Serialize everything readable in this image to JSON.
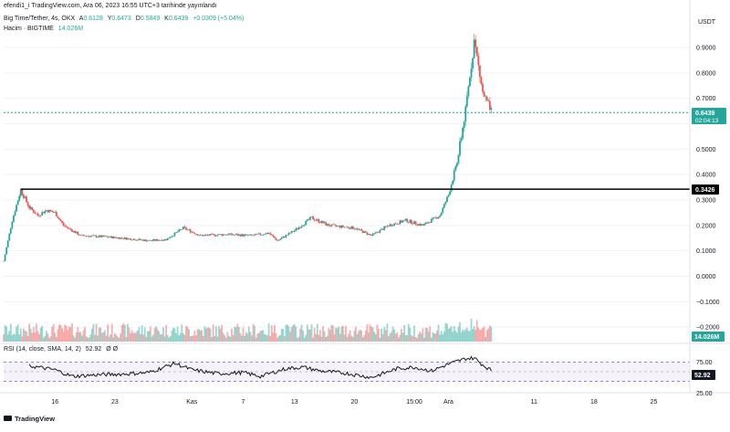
{
  "attribution": "efendi1_i TradingView.com, Ara 06, 2023 16:55 UTC+3 tarihinde yayınlandı",
  "legend": {
    "symbol": "Big Time/Tether, 4s, OKX",
    "open_label": "A",
    "open": "0.6128",
    "high_label": "Y",
    "high": "0.6473",
    "low_label": "D",
    "low": "0.5849",
    "close_label": "K",
    "close": "0.6439",
    "change": "+0.0309 (+5.04%)",
    "volume_label": "Hacim · BIGTIME",
    "volume": "14.026M"
  },
  "currency": "USDT",
  "price_axis_ticks": [
    "0.9000",
    "0.8000",
    "0.7000",
    "0.5000",
    "0.4000",
    "0.3000",
    "0.2000",
    "0.1000",
    "0.0000",
    "−0.1000",
    "−0.2000"
  ],
  "price_labels": {
    "last_price": "0.6439",
    "countdown": "02:04:13",
    "horizontal_line": "0.3426",
    "volume_badge": "14.026M"
  },
  "rsi": {
    "legend_title": "RSI (14, close, SMA, 14, 2)",
    "legend_value": "52.92",
    "legend_extra": "Ø Ø",
    "ticks": [
      "75.00",
      "25.00"
    ],
    "badge": "52.92"
  },
  "time_axis": [
    "16",
    "23",
    "Kas",
    "7",
    "13",
    "20",
    "15:00",
    "Ara",
    "11",
    "18",
    "25"
  ],
  "footer_logo": "TradingView",
  "colors": {
    "up": "#26a69a",
    "down": "#ef5350",
    "last_price_line": "#26a69a",
    "horizontal_line": "#000000",
    "rsi_line": "#131722",
    "rsi_band": "#7e57c2",
    "grid": "#f0f3fa"
  },
  "chart_data": [
    {
      "type": "candlestick",
      "title": "Big Time/Tether, 4s, OKX",
      "ylabel": "USDT",
      "ylim": [
        -0.22,
        1.0
      ],
      "horizontal_line": 0.3426,
      "x_start": "2023-10-10",
      "x_end": "2023-12-29",
      "close_path": [
        [
          "2023-10-10",
          0.06
        ],
        [
          "2023-10-11",
          0.22
        ],
        [
          "2023-10-12",
          0.34
        ],
        [
          "2023-10-13",
          0.27
        ],
        [
          "2023-10-14",
          0.24
        ],
        [
          "2023-10-15",
          0.26
        ],
        [
          "2023-10-16",
          0.25
        ],
        [
          "2023-10-17",
          0.2
        ],
        [
          "2023-10-19",
          0.16
        ],
        [
          "2023-10-22",
          0.155
        ],
        [
          "2023-10-24",
          0.15
        ],
        [
          "2023-10-27",
          0.14
        ],
        [
          "2023-10-29",
          0.145
        ],
        [
          "2023-10-31",
          0.19
        ],
        [
          "2023-11-02",
          0.16
        ],
        [
          "2023-11-05",
          0.165
        ],
        [
          "2023-11-08",
          0.16
        ],
        [
          "2023-11-10",
          0.17
        ],
        [
          "2023-11-11",
          0.14
        ],
        [
          "2023-11-13",
          0.18
        ],
        [
          "2023-11-15",
          0.23
        ],
        [
          "2023-11-17",
          0.2
        ],
        [
          "2023-11-20",
          0.19
        ],
        [
          "2023-11-22",
          0.16
        ],
        [
          "2023-11-24",
          0.2
        ],
        [
          "2023-11-26",
          0.22
        ],
        [
          "2023-11-28",
          0.2
        ],
        [
          "2023-11-30",
          0.24
        ],
        [
          "2023-12-01",
          0.32
        ],
        [
          "2023-12-02",
          0.45
        ],
        [
          "2023-12-03",
          0.65
        ],
        [
          "2023-12-04",
          0.93
        ],
        [
          "2023-12-05",
          0.72
        ],
        [
          "2023-12-06",
          0.6439
        ]
      ]
    },
    {
      "type": "bar",
      "title": "Hacim · BIGTIME",
      "last_value": "14.026M"
    },
    {
      "type": "line",
      "title": "RSI (14, close, SMA, 14, 2)",
      "ylim": [
        0,
        100
      ],
      "bands": [
        25,
        75
      ],
      "values": [
        [
          "2023-10-13",
          65
        ],
        [
          "2023-10-14",
          62
        ],
        [
          "2023-10-16",
          55
        ],
        [
          "2023-10-18",
          38
        ],
        [
          "2023-10-21",
          42
        ],
        [
          "2023-10-24",
          44
        ],
        [
          "2023-10-27",
          48
        ],
        [
          "2023-10-30",
          72
        ],
        [
          "2023-11-01",
          55
        ],
        [
          "2023-11-04",
          45
        ],
        [
          "2023-11-07",
          48
        ],
        [
          "2023-11-09",
          38
        ],
        [
          "2023-11-12",
          58
        ],
        [
          "2023-11-14",
          62
        ],
        [
          "2023-11-16",
          52
        ],
        [
          "2023-11-19",
          46
        ],
        [
          "2023-11-22",
          35
        ],
        [
          "2023-11-25",
          58
        ],
        [
          "2023-11-27",
          62
        ],
        [
          "2023-11-29",
          52
        ],
        [
          "2023-12-01",
          70
        ],
        [
          "2023-12-03",
          84
        ],
        [
          "2023-12-04",
          86
        ],
        [
          "2023-12-05",
          68
        ],
        [
          "2023-12-06",
          52.92
        ]
      ]
    }
  ]
}
